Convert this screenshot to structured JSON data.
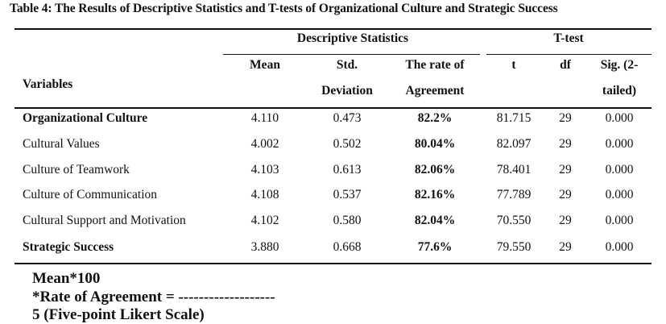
{
  "caption": "Table 4: The Results of Descriptive Statistics and T-tests of Organizational Culture and Strategic Success",
  "header": {
    "group_descriptive": "Descriptive Statistics",
    "group_ttest": "T-test",
    "variables": "Variables",
    "mean": "Mean",
    "std_line1": "Std.",
    "std_line2": "Deviation",
    "rate_line1": "The rate of",
    "rate_line2": "Agreement",
    "t": "t",
    "df": "df",
    "sig_line1": "Sig. (2-",
    "sig_line2": "tailed)"
  },
  "rows": [
    {
      "variable": "Organizational Culture",
      "mean": "4.110",
      "std": "0.473",
      "rate": "82.2%",
      "t": "81.715",
      "df": "29",
      "sig": "0.000",
      "bold_var": true
    },
    {
      "variable": "Cultural Values",
      "mean": "4.002",
      "std": "0.502",
      "rate": "80.04%",
      "t": "82.097",
      "df": "29",
      "sig": "0.000",
      "bold_var": false
    },
    {
      "variable": "Culture of Teamwork",
      "mean": "4.103",
      "std": "0.613",
      "rate": "82.06%",
      "t": "78.401",
      "df": "29",
      "sig": "0.000",
      "bold_var": false
    },
    {
      "variable": "Culture of Communication",
      "mean": "4.108",
      "std": "0.537",
      "rate": "82.16%",
      "t": "77.789",
      "df": "29",
      "sig": "0.000",
      "bold_var": false
    },
    {
      "variable": "Cultural Support and Motivation",
      "mean": "4.102",
      "std": "0.580",
      "rate": "82.04%",
      "t": "70.550",
      "df": "29",
      "sig": "0.000",
      "bold_var": false
    },
    {
      "variable": "Strategic Success",
      "mean": "3.880",
      "std": "0.668",
      "rate": "77.6%",
      "t": "79.550",
      "df": "29",
      "sig": "0.000",
      "bold_var": true
    }
  ],
  "footnote": {
    "line1": "Mean*100",
    "line2": "*Rate of Agreement = -------------------",
    "line3": "5 (Five-point Likert Scale)"
  }
}
